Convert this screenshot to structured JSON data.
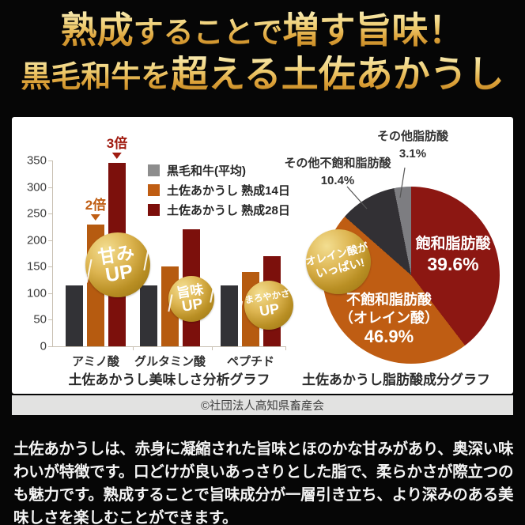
{
  "header": {
    "line1_parts": [
      {
        "t": "熟成"
      },
      {
        "t": "することで"
      },
      {
        "t": "増す旨味！"
      }
    ],
    "line2_parts": [
      {
        "t": "黒毛和牛を"
      },
      {
        "t": "超える土佐あかうし"
      }
    ]
  },
  "chart_data": [
    {
      "type": "bar",
      "title": "土佐あかうし美味しさ分析グラフ",
      "categories": [
        "アミノ酸",
        "グルタミン酸",
        "ペプチド"
      ],
      "series": [
        {
          "name": "黒毛和牛(平均)",
          "color": "#323236",
          "legend_color": "#8d8d8d",
          "values": [
            115,
            115,
            115
          ]
        },
        {
          "name": "土佐あかうし 熟成14日",
          "color": "#b65b10",
          "legend_color": "#bf5d13",
          "values": [
            230,
            150,
            140
          ]
        },
        {
          "name": "土佐あかうし 熟成28日",
          "color": "#7c100c",
          "legend_color": "#7c0e0a",
          "values": [
            345,
            220,
            170
          ]
        }
      ],
      "ylim": [
        0,
        350
      ],
      "yticks": [
        0,
        50,
        100,
        150,
        200,
        250,
        300,
        350
      ],
      "grid": false,
      "legend_position": "upper right",
      "annotations": [
        {
          "text": "2倍",
          "series": 1,
          "category": 0,
          "color": "#c05e14"
        },
        {
          "text": "3倍",
          "series": 2,
          "category": 0,
          "color": "#a01b10"
        }
      ],
      "badges": [
        {
          "line1": "甘み",
          "line2": "UP"
        },
        {
          "line1": "旨味",
          "line2": "UP"
        },
        {
          "line1": "まろやかさ",
          "line2": "UP"
        }
      ]
    },
    {
      "type": "pie",
      "title": "土佐あかうし脂肪酸成分グラフ",
      "slices": [
        {
          "label": "飽和脂肪酸",
          "l1": "飽和脂肪酸",
          "l2": "",
          "pct": 39.6,
          "pct_text": "39.6%",
          "color": "#8c1712"
        },
        {
          "label": "不飽和脂肪酸（オレイン酸）",
          "l1": "不飽和脂肪酸",
          "l2": "（オレイン酸）",
          "pct": 46.9,
          "pct_text": "46.9%",
          "color": "#bf5d13"
        },
        {
          "label": "その他不飽和脂肪酸",
          "l1": "その他不飽和脂肪酸",
          "l2": "",
          "pct": 10.4,
          "pct_text": "10.4%",
          "color": "#323034"
        },
        {
          "label": "その他脂肪酸",
          "l1": "その他脂肪酸",
          "l2": "",
          "pct": 3.1,
          "pct_text": "3.1%",
          "color": "#7d7d81"
        }
      ],
      "badge": {
        "line1": "オレイン酸が",
        "line2": "いっぱい!"
      }
    }
  ],
  "copyright": "©社団法人高知県畜産会",
  "description": "土佐あかうしは、赤身に凝縮された旨味とほのかな甘みがあり、奥深い味わいが特徴です。口どけが良いあっさりとした脂で、柔らかさが際立つのも魅力です。熟成することで旨味成分が一層引き立ち、より深みのある美味しさを楽しむことができます。",
  "colors": {
    "gold_accent": "#ddb551",
    "dark_red": "#7c100c",
    "orange": "#bf5d13",
    "background": "#060606"
  }
}
